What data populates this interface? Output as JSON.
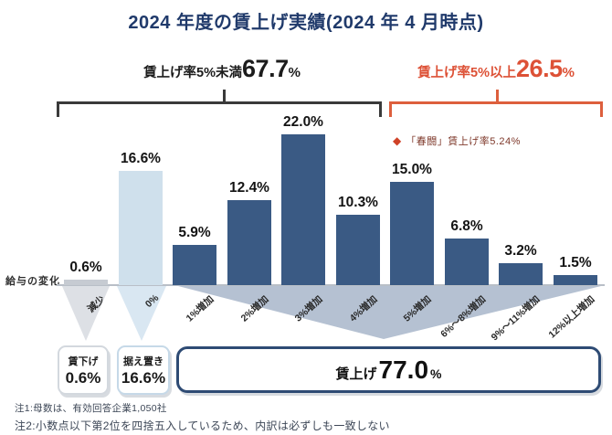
{
  "title": "2024 年度の賃上げ実績(2024 年 4 月時点)",
  "brackets": {
    "under5": {
      "label": "賃上げ率5%未満",
      "value": "67.7",
      "unit": "%"
    },
    "over5": {
      "label": "賃上げ率5%以上",
      "value": "26.5",
      "unit": "%"
    }
  },
  "legend": {
    "marker": "◆",
    "label": "「春闘」賃上げ率5.24%"
  },
  "axis_label": "給与の変化",
  "chart_data": {
    "type": "bar",
    "categories": [
      "減少",
      "0%",
      "1%増加",
      "2%増加",
      "3%増加",
      "4%増加",
      "5%増加",
      "6%〜8%増加",
      "9%〜11%増加",
      "12%以上増加"
    ],
    "values": [
      0.6,
      16.6,
      5.9,
      12.4,
      22.0,
      10.3,
      15.0,
      6.8,
      3.2,
      1.5
    ],
    "value_labels": [
      "0.6%",
      "16.6%",
      "5.9%",
      "12.4%",
      "22.0%",
      "10.3%",
      "15.0%",
      "6.8%",
      "3.2%",
      "1.5%"
    ],
    "bar_colors": [
      "#c6cbd2",
      "#cfe0ec",
      "#3a5a84",
      "#3a5a84",
      "#3a5a84",
      "#3a5a84",
      "#3a5a84",
      "#3a5a84",
      "#3a5a84",
      "#3a5a84"
    ],
    "title": "2024 年度の賃上げ実績(2024 年 4 月時点)",
    "xlabel": "給与の変化",
    "ylabel": "",
    "ylim": [
      0,
      25
    ],
    "value_axis_visible": false,
    "grid": false,
    "annotations": [
      "賃上げ率5%未満67.7%",
      "賃上げ率5%以上26.5%",
      "「春闘」賃上げ率5.24%"
    ]
  },
  "summary_boxes": {
    "down": {
      "label": "賃下げ",
      "value": "0.6%"
    },
    "keep": {
      "label": "据え置き",
      "value": "16.6%"
    },
    "up": {
      "label": "賃上げ",
      "value": "77.0",
      "unit": "%"
    }
  },
  "notes": [
    "注1:母数は、有効回答企業1,050社",
    "注2:小数点以下第2位を四捨五入しているため、内訳は必ずしも一致しない"
  ],
  "colors": {
    "title_navy": "#203a6b",
    "bar_navy": "#3a5a84",
    "bar_lightblue": "#cfe0ec",
    "bar_gray": "#c6cbd2",
    "bracket_dark": "#3a3a3a",
    "accent_orange": "#dd5f3d",
    "legend_diamond": "#cf4227",
    "funnel_blue_gray": "#b5c1d2",
    "box_border_navy": "#2e4b74"
  }
}
